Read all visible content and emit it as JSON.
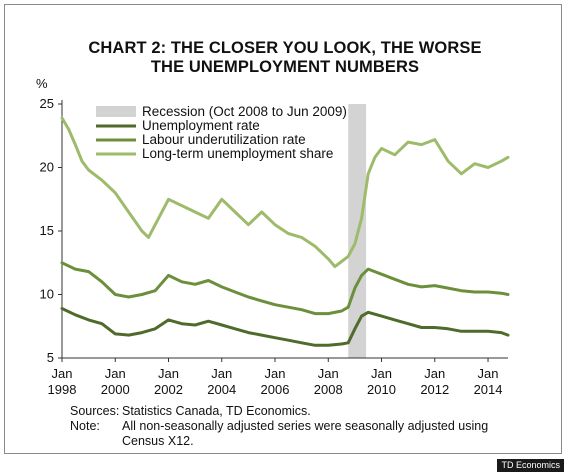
{
  "header": {
    "title_line1": "CHART 2: THE CLOSER YOU LOOK, THE WORSE",
    "title_line2": "THE UNEMPLOYMENT NUMBERS"
  },
  "footer": {
    "sources_label": "Sources:",
    "sources_text": "Statistics Canada, TD Economics.",
    "note_label": "Note:",
    "note_text": "All non-seasonally adjusted series were seasonally adjusted using Census X12.",
    "credit": "TD Economics"
  },
  "chart_data": {
    "type": "line",
    "ylabel": "%",
    "ylim": [
      5,
      25
    ],
    "yticks": [
      5,
      10,
      15,
      20,
      25
    ],
    "xlim": [
      1998.0,
      2014.75
    ],
    "xticks": [
      {
        "month": "Jan",
        "year": "1998",
        "x": 1998
      },
      {
        "month": "Jan",
        "year": "2000",
        "x": 2000
      },
      {
        "month": "Jan",
        "year": "2002",
        "x": 2002
      },
      {
        "month": "Jan",
        "year": "2004",
        "x": 2004
      },
      {
        "month": "Jan",
        "year": "2006",
        "x": 2006
      },
      {
        "month": "Jan",
        "year": "2008",
        "x": 2008
      },
      {
        "month": "Jan",
        "year": "2010",
        "x": 2010
      },
      {
        "month": "Jan",
        "year": "2012",
        "x": 2012
      },
      {
        "month": "Jan",
        "year": "2014",
        "x": 2014
      }
    ],
    "grid": false,
    "legend_position": "top-left",
    "recession": {
      "label": "Recession (Oct 2008 to Jun 2009)",
      "start": 2008.75,
      "end": 2009.42,
      "color": "#d3d3d3"
    },
    "series": [
      {
        "name": "Unemployment rate",
        "color": "#4f6b2c",
        "x": [
          1998.0,
          1998.5,
          1999.0,
          1999.5,
          2000.0,
          2000.5,
          2001.0,
          2001.5,
          2002.0,
          2002.5,
          2003.0,
          2003.5,
          2004.0,
          2004.5,
          2005.0,
          2005.5,
          2006.0,
          2006.5,
          2007.0,
          2007.5,
          2008.0,
          2008.5,
          2008.75,
          2009.0,
          2009.25,
          2009.5,
          2010.0,
          2010.5,
          2011.0,
          2011.5,
          2012.0,
          2012.5,
          2013.0,
          2013.5,
          2014.0,
          2014.5,
          2014.75
        ],
        "y": [
          8.9,
          8.4,
          8.0,
          7.7,
          6.9,
          6.8,
          7.0,
          7.3,
          8.0,
          7.7,
          7.6,
          7.9,
          7.6,
          7.3,
          7.0,
          6.8,
          6.6,
          6.4,
          6.2,
          6.0,
          6.0,
          6.1,
          6.2,
          7.3,
          8.3,
          8.6,
          8.3,
          8.0,
          7.7,
          7.4,
          7.4,
          7.3,
          7.1,
          7.1,
          7.1,
          7.0,
          6.8
        ]
      },
      {
        "name": "Labour underutilization rate",
        "color": "#6b8f3b",
        "x": [
          1998.0,
          1998.5,
          1999.0,
          1999.5,
          2000.0,
          2000.5,
          2001.0,
          2001.5,
          2002.0,
          2002.5,
          2003.0,
          2003.5,
          2004.0,
          2004.5,
          2005.0,
          2005.5,
          2006.0,
          2006.5,
          2007.0,
          2007.5,
          2008.0,
          2008.5,
          2008.75,
          2009.0,
          2009.25,
          2009.5,
          2010.0,
          2010.5,
          2011.0,
          2011.5,
          2012.0,
          2012.5,
          2013.0,
          2013.5,
          2014.0,
          2014.5,
          2014.75
        ],
        "y": [
          12.5,
          12.0,
          11.8,
          11.0,
          10.0,
          9.8,
          10.0,
          10.3,
          11.5,
          11.0,
          10.8,
          11.1,
          10.6,
          10.2,
          9.8,
          9.5,
          9.2,
          9.0,
          8.8,
          8.5,
          8.5,
          8.7,
          9.0,
          10.5,
          11.5,
          12.0,
          11.6,
          11.2,
          10.8,
          10.6,
          10.7,
          10.5,
          10.3,
          10.2,
          10.2,
          10.1,
          10.0
        ]
      },
      {
        "name": "Long-term unemployment share",
        "color": "#9dbb6a",
        "x": [
          1998.0,
          1998.25,
          1998.5,
          1998.75,
          1999.0,
          1999.5,
          2000.0,
          2000.5,
          2001.0,
          2001.25,
          2001.5,
          2002.0,
          2002.5,
          2003.0,
          2003.5,
          2004.0,
          2004.5,
          2005.0,
          2005.5,
          2006.0,
          2006.5,
          2007.0,
          2007.5,
          2008.0,
          2008.25,
          2008.5,
          2008.75,
          2009.0,
          2009.25,
          2009.5,
          2009.75,
          2010.0,
          2010.5,
          2011.0,
          2011.5,
          2012.0,
          2012.5,
          2013.0,
          2013.5,
          2014.0,
          2014.5,
          2014.75
        ],
        "y": [
          23.9,
          23.0,
          21.8,
          20.5,
          19.8,
          19.0,
          18.0,
          16.5,
          15.0,
          14.5,
          15.5,
          17.5,
          17.0,
          16.5,
          16.0,
          17.5,
          16.5,
          15.5,
          16.5,
          15.5,
          14.8,
          14.5,
          13.8,
          12.8,
          12.2,
          12.6,
          13.0,
          14.0,
          16.0,
          19.5,
          20.8,
          21.5,
          21.0,
          22.0,
          21.8,
          22.2,
          20.5,
          19.5,
          20.3,
          20.0,
          20.5,
          20.8
        ]
      }
    ]
  }
}
